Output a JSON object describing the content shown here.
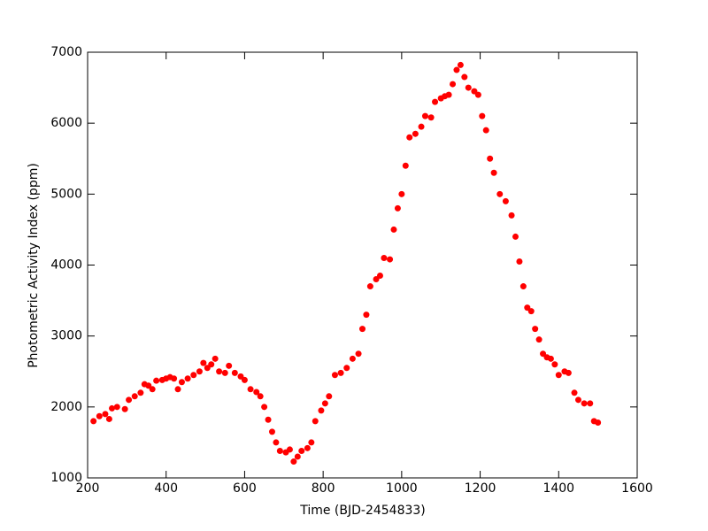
{
  "chart_data": {
    "type": "scatter",
    "xlabel": "Time (BJD-2454833)",
    "ylabel": "Photometric Activity Index (ppm)",
    "color": "#ff0000",
    "xlim": [
      200,
      1600
    ],
    "xticks": [
      200,
      400,
      600,
      800,
      1000,
      1200,
      1400,
      1600
    ],
    "ylim": [
      1000,
      7000
    ],
    "yticks": [
      1000,
      2000,
      3000,
      4000,
      5000,
      6000,
      7000
    ],
    "x": [
      215,
      230,
      245,
      255,
      262,
      275,
      295,
      305,
      320,
      335,
      345,
      355,
      365,
      375,
      390,
      400,
      410,
      420,
      430,
      440,
      455,
      470,
      485,
      495,
      505,
      515,
      525,
      535,
      550,
      560,
      575,
      590,
      600,
      615,
      630,
      640,
      650,
      660,
      670,
      680,
      690,
      705,
      715,
      725,
      735,
      745,
      760,
      770,
      780,
      795,
      805,
      815,
      830,
      845,
      860,
      875,
      890,
      900,
      910,
      920,
      935,
      945,
      955,
      970,
      980,
      990,
      1000,
      1010,
      1020,
      1035,
      1050,
      1060,
      1075,
      1085,
      1100,
      1110,
      1120,
      1130,
      1140,
      1150,
      1160,
      1170,
      1185,
      1195,
      1205,
      1215,
      1225,
      1235,
      1250,
      1265,
      1280,
      1290,
      1300,
      1310,
      1320,
      1330,
      1340,
      1350,
      1360,
      1370,
      1380,
      1390,
      1400,
      1415,
      1425,
      1440,
      1450,
      1465,
      1480,
      1490,
      1500
    ],
    "values": [
      1800,
      1870,
      1900,
      1830,
      1980,
      2000,
      1970,
      2100,
      2150,
      2200,
      2320,
      2300,
      2250,
      2370,
      2380,
      2400,
      2420,
      2400,
      2250,
      2350,
      2400,
      2450,
      2500,
      2620,
      2550,
      2600,
      2680,
      2500,
      2480,
      2580,
      2480,
      2430,
      2380,
      2250,
      2210,
      2150,
      2000,
      1820,
      1650,
      1500,
      1380,
      1360,
      1400,
      1230,
      1300,
      1380,
      1420,
      1500,
      1800,
      1950,
      2050,
      2150,
      2450,
      2480,
      2550,
      2680,
      2750,
      3100,
      3300,
      3700,
      3800,
      3850,
      4100,
      4080,
      4500,
      4800,
      5000,
      5400,
      5800,
      5850,
      5950,
      6100,
      6080,
      6300,
      6350,
      6380,
      6400,
      6550,
      6750,
      6820,
      6650,
      6500,
      6450,
      6400,
      6100,
      5900,
      5500,
      5300,
      5000,
      4900,
      4700,
      4400,
      4050,
      3700,
      3400,
      3350,
      3100,
      2950,
      2750,
      2700,
      2680,
      2600,
      2450,
      2500,
      2480,
      2200,
      2100,
      2050,
      2050,
      1800,
      1780
    ]
  }
}
